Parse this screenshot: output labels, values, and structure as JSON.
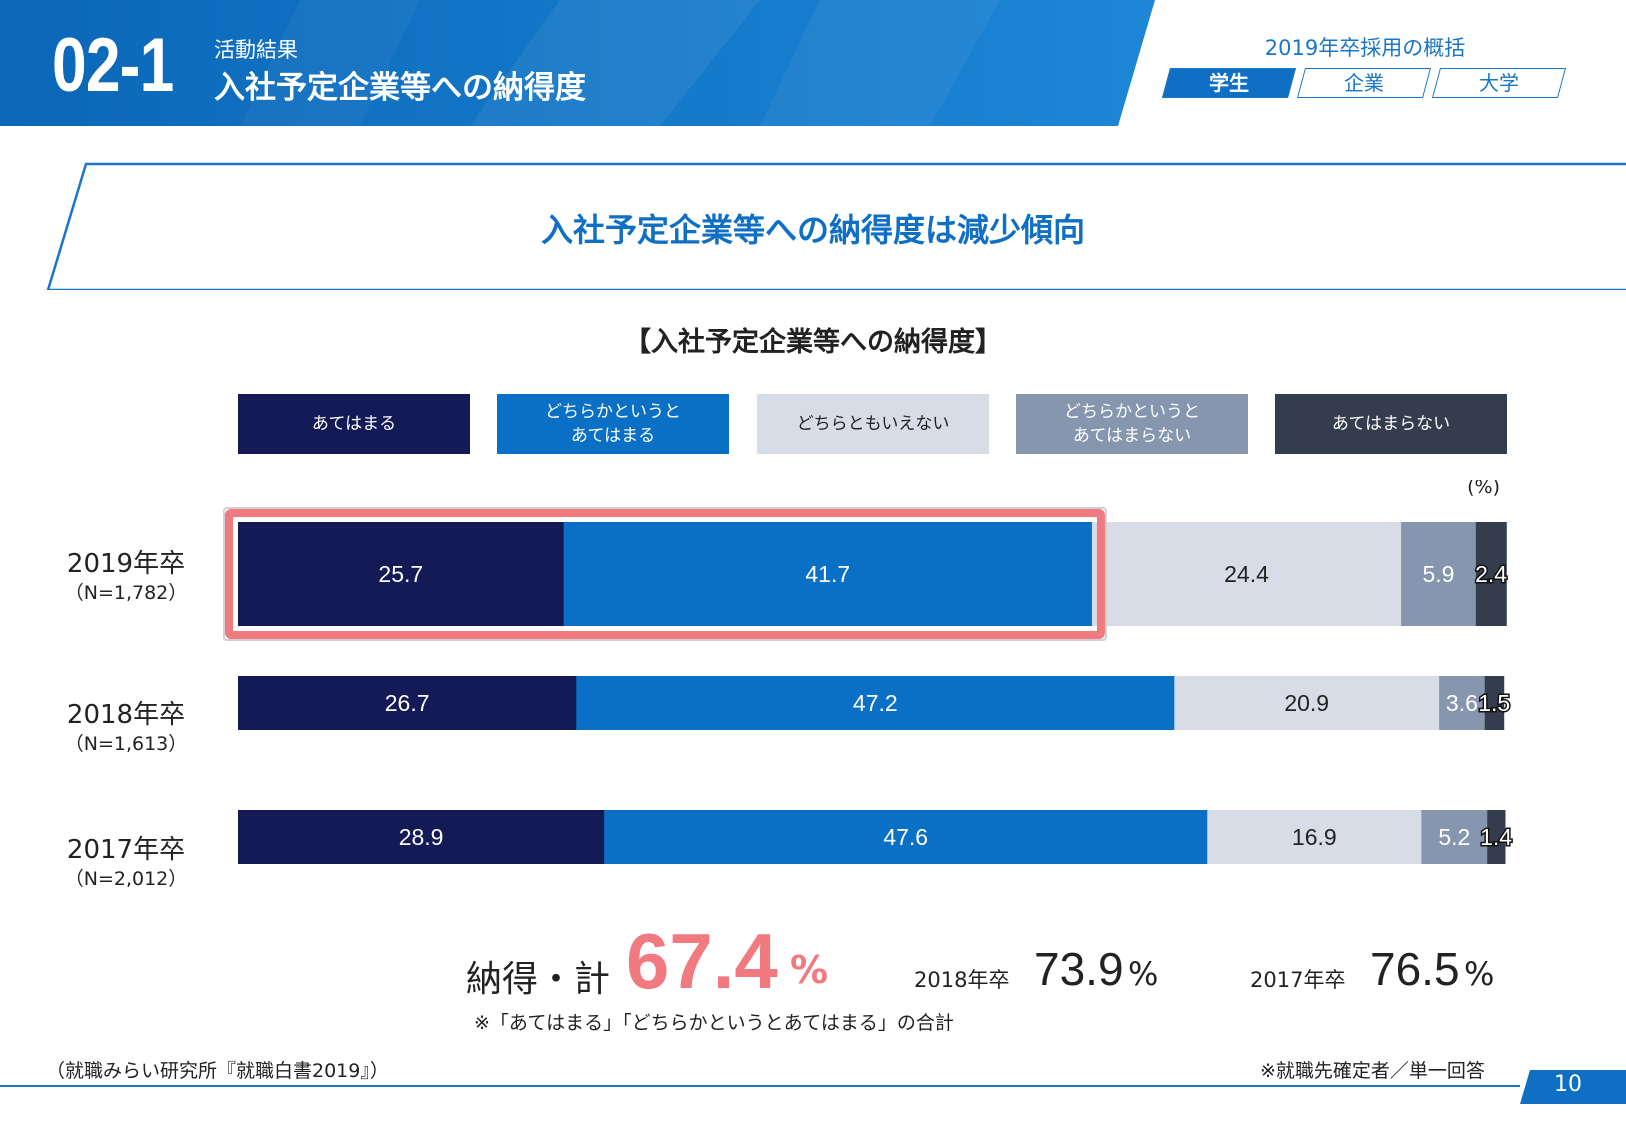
{
  "header": {
    "section_number": "02-1",
    "section_label": "活動結果",
    "section_title": "入社予定企業等への納得度",
    "overview_title": "2019年卒採用の概括",
    "tabs": [
      {
        "label": "学生",
        "active": true
      },
      {
        "label": "企業",
        "active": false
      },
      {
        "label": "大学",
        "active": false
      }
    ]
  },
  "banner": {
    "headline": "入社予定企業等への納得度は減少傾向"
  },
  "chart_data": {
    "type": "bar",
    "orientation": "horizontal-stacked-100",
    "title": "【入社予定企業等への納得度】",
    "unit_label": "(%)",
    "categories": [
      "2019年卒",
      "2018年卒",
      "2017年卒"
    ],
    "category_n": [
      "（N=1,782）",
      "（N=1,613）",
      "（N=2,012）"
    ],
    "xlim": [
      0,
      100
    ],
    "legend_placement": "top",
    "series": [
      {
        "name": "あてはまる",
        "color": "#141a55",
        "text_color": "#ffffff",
        "values": [
          25.7,
          26.7,
          28.9
        ]
      },
      {
        "name": "どちらかというと\nあてはまる",
        "color": "#0a70c6",
        "text_color": "#ffffff",
        "values": [
          41.7,
          47.2,
          47.6
        ]
      },
      {
        "name": "どちらともいえない",
        "color": "#d7dce6",
        "text_color": "#222222",
        "values": [
          24.4,
          20.9,
          16.9
        ]
      },
      {
        "name": "どちらかというと\nあてはまらない",
        "color": "#8696ae",
        "text_color": "#ffffff",
        "values": [
          5.9,
          3.6,
          5.2
        ]
      },
      {
        "name": "あてはまらない",
        "color": "#343d4e",
        "text_color": "#ffffff",
        "values": [
          2.4,
          1.5,
          1.4
        ]
      }
    ],
    "highlight": {
      "category_index": 0,
      "series_indices": [
        0,
        1
      ],
      "color": "#f07a80"
    }
  },
  "summary": {
    "label": "納得・計",
    "value": "67.4",
    "unit": "%",
    "note": "※「あてはまる」「どちらかというとあてはまる」の合計",
    "comparisons": [
      {
        "label": "2018年卒",
        "value": "73.9",
        "unit": "%"
      },
      {
        "label": "2017年卒",
        "value": "76.5",
        "unit": "%"
      }
    ]
  },
  "footer": {
    "source": "（就職みらい研究所『就職白書2019』）",
    "respondent_note": "※就職先確定者／単一回答",
    "page_number": "10"
  },
  "colors": {
    "brand_blue": "#0f6fc4",
    "accent_pink": "#f07a80"
  }
}
